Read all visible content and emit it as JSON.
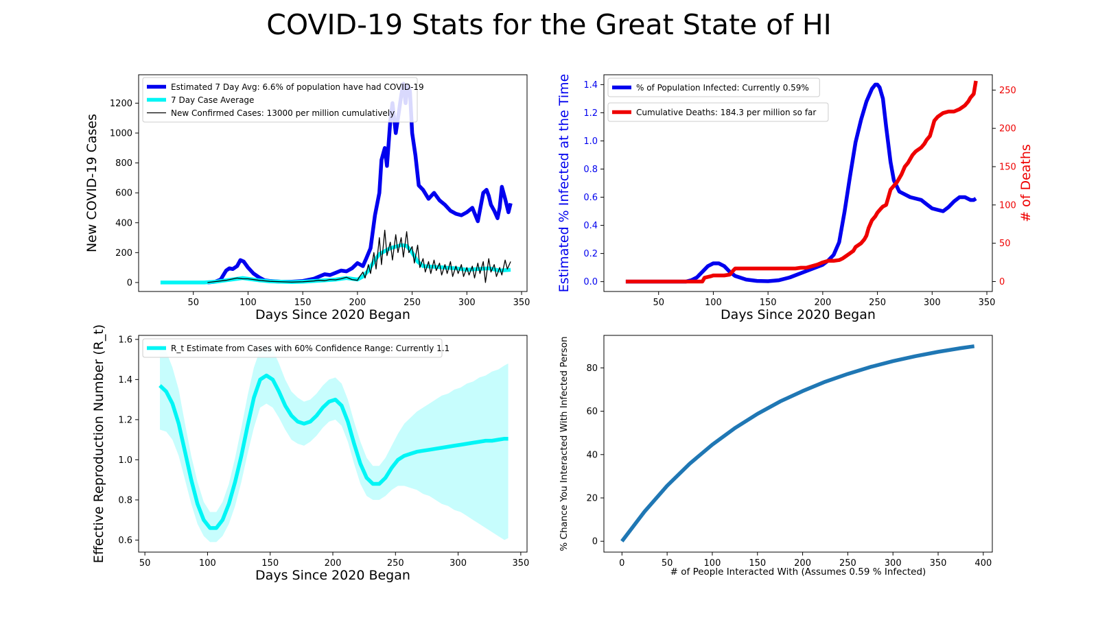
{
  "page": {
    "title": "COVID-19 Stats for the Great State of HI"
  },
  "chart_data": [
    {
      "id": "cases",
      "type": "line",
      "xlabel": "Days Since 2020 Began",
      "ylabel": "New COVID-19 Cases",
      "xlim": [
        0,
        355
      ],
      "ylim": [
        -60,
        1390
      ],
      "xticks": [
        50,
        100,
        150,
        200,
        250,
        300,
        350
      ],
      "yticks": [
        0,
        200,
        400,
        600,
        800,
        1000,
        1200
      ],
      "legend_position": "top-left",
      "series": [
        {
          "name": "Estimated 7 Day Avg: 6.6% of population have had COVID-19",
          "color": "#0000ee",
          "x": [
            63,
            70,
            75,
            80,
            83,
            86,
            90,
            93,
            96,
            100,
            105,
            110,
            115,
            120,
            125,
            130,
            140,
            150,
            160,
            165,
            170,
            175,
            180,
            185,
            190,
            195,
            200,
            205,
            208,
            212,
            216,
            220,
            222,
            225,
            227,
            230,
            232,
            235,
            238,
            240,
            242,
            244,
            246,
            248,
            250,
            253,
            256,
            260,
            265,
            270,
            275,
            280,
            285,
            290,
            295,
            300,
            305,
            310,
            315,
            318,
            320,
            322,
            325,
            328,
            330,
            332,
            335,
            338,
            340
          ],
          "y": [
            0,
            5,
            20,
            80,
            95,
            90,
            110,
            150,
            140,
            100,
            60,
            35,
            15,
            10,
            8,
            5,
            5,
            10,
            25,
            40,
            55,
            50,
            65,
            80,
            75,
            95,
            130,
            110,
            160,
            230,
            450,
            600,
            820,
            900,
            780,
            1080,
            1200,
            1000,
            1150,
            1250,
            1330,
            1200,
            1320,
            1280,
            1000,
            850,
            650,
            620,
            560,
            600,
            550,
            520,
            480,
            460,
            450,
            470,
            500,
            410,
            600,
            620,
            580,
            520,
            480,
            430,
            500,
            640,
            560,
            470,
            530
          ]
        },
        {
          "name": "7 Day Case Average",
          "color": "#00f5f5",
          "x": [
            20,
            40,
            60,
            70,
            80,
            90,
            95,
            100,
            110,
            120,
            130,
            140,
            150,
            160,
            170,
            180,
            190,
            195,
            200,
            205,
            210,
            215,
            220,
            225,
            230,
            235,
            240,
            245,
            250,
            255,
            260,
            270,
            280,
            290,
            300,
            310,
            320,
            330,
            340
          ],
          "y": [
            0,
            0,
            0,
            5,
            15,
            25,
            30,
            25,
            15,
            8,
            5,
            3,
            5,
            10,
            15,
            20,
            30,
            25,
            20,
            40,
            80,
            140,
            190,
            210,
            230,
            240,
            250,
            245,
            200,
            140,
            110,
            105,
            100,
            95,
            85,
            90,
            95,
            80,
            85
          ]
        },
        {
          "name": "New Confirmed Cases: 13000 per million cumulatively",
          "color": "#000000",
          "x": [
            63,
            80,
            90,
            95,
            100,
            110,
            120,
            130,
            140,
            150,
            160,
            165,
            170,
            175,
            180,
            185,
            190,
            195,
            200,
            202,
            205,
            207,
            210,
            212,
            215,
            217,
            220,
            222,
            225,
            227,
            230,
            232,
            235,
            237,
            240,
            242,
            245,
            247,
            250,
            252,
            255,
            257,
            260,
            262,
            265,
            267,
            270,
            272,
            275,
            277,
            280,
            282,
            285,
            287,
            290,
            292,
            295,
            297,
            300,
            302,
            305,
            307,
            310,
            312,
            315,
            317,
            320,
            322,
            325,
            327,
            330,
            332,
            335,
            337,
            340
          ],
          "y": [
            0,
            15,
            30,
            25,
            25,
            15,
            8,
            5,
            3,
            5,
            10,
            15,
            12,
            20,
            18,
            25,
            35,
            20,
            15,
            40,
            70,
            30,
            120,
            60,
            200,
            90,
            300,
            120,
            350,
            180,
            270,
            150,
            320,
            200,
            300,
            170,
            340,
            200,
            240,
            130,
            250,
            100,
            160,
            70,
            140,
            60,
            150,
            80,
            130,
            50,
            120,
            60,
            140,
            40,
            110,
            60,
            120,
            40,
            100,
            50,
            110,
            30,
            130,
            60,
            140,
            0,
            160,
            70,
            120,
            40,
            100,
            50,
            150,
            90,
            140
          ]
        }
      ]
    },
    {
      "id": "infected",
      "type": "line",
      "xlabel": "Days Since 2020 Began",
      "ylabel": "Estimated % Infected at the Time",
      "ylabel_right": "# of Deaths",
      "xlim": [
        0,
        355
      ],
      "ylim": [
        -0.07,
        1.47
      ],
      "ylim_right": [
        -13,
        270
      ],
      "xticks": [
        50,
        100,
        150,
        200,
        250,
        300,
        350
      ],
      "yticks": [
        0.0,
        0.2,
        0.4,
        0.6,
        0.8,
        1.0,
        1.2,
        1.4
      ],
      "yticks_right": [
        0,
        50,
        100,
        150,
        200,
        250
      ],
      "legend_position": "top-left",
      "series": [
        {
          "name": "% of Population Infected: Currently 0.59%",
          "color": "#0000ee",
          "axis": "left",
          "x": [
            20,
            40,
            60,
            75,
            80,
            85,
            90,
            95,
            100,
            105,
            110,
            115,
            120,
            130,
            140,
            150,
            160,
            170,
            180,
            190,
            200,
            205,
            210,
            215,
            220,
            225,
            230,
            235,
            240,
            245,
            248,
            250,
            252,
            255,
            258,
            262,
            265,
            270,
            275,
            280,
            290,
            295,
            300,
            305,
            310,
            315,
            320,
            325,
            330,
            335,
            338,
            340
          ],
          "y": [
            0,
            0,
            0,
            0,
            0.01,
            0.03,
            0.07,
            0.11,
            0.13,
            0.13,
            0.11,
            0.07,
            0.04,
            0.015,
            0.005,
            0.003,
            0.01,
            0.03,
            0.06,
            0.09,
            0.12,
            0.15,
            0.19,
            0.28,
            0.5,
            0.75,
            0.99,
            1.15,
            1.28,
            1.37,
            1.4,
            1.4,
            1.38,
            1.3,
            1.1,
            0.85,
            0.72,
            0.64,
            0.62,
            0.6,
            0.58,
            0.55,
            0.52,
            0.51,
            0.5,
            0.53,
            0.57,
            0.6,
            0.6,
            0.58,
            0.58,
            0.59
          ]
        },
        {
          "name": "Cumulative Deaths: 184.3 per million so far",
          "color": "#ee0000",
          "axis": "right",
          "x": [
            20,
            40,
            60,
            75,
            80,
            90,
            92,
            98,
            100,
            105,
            110,
            115,
            118,
            120,
            150,
            175,
            180,
            185,
            190,
            195,
            200,
            205,
            210,
            215,
            218,
            220,
            225,
            228,
            230,
            235,
            238,
            240,
            242,
            245,
            248,
            250,
            253,
            255,
            258,
            260,
            262,
            265,
            268,
            270,
            272,
            275,
            278,
            280,
            282,
            285,
            290,
            293,
            295,
            298,
            300,
            302,
            305,
            310,
            315,
            320,
            325,
            330,
            333,
            335,
            338,
            340
          ],
          "y": [
            0,
            0,
            0,
            0,
            0,
            0,
            5,
            7,
            8,
            8,
            8,
            9,
            14,
            17,
            17,
            17,
            18,
            18,
            20,
            22,
            25,
            27,
            27,
            28,
            30,
            32,
            37,
            40,
            45,
            50,
            55,
            60,
            70,
            80,
            85,
            90,
            95,
            98,
            100,
            110,
            120,
            125,
            130,
            135,
            140,
            150,
            155,
            160,
            165,
            170,
            175,
            180,
            185,
            190,
            200,
            210,
            215,
            220,
            222,
            222,
            225,
            230,
            235,
            240,
            245,
            262
          ]
        }
      ]
    },
    {
      "id": "rt",
      "type": "line",
      "xlabel": "Days Since 2020 Began",
      "ylabel": "Effective Reproduction Number (R_t)",
      "xlim": [
        45,
        355
      ],
      "ylim": [
        0.54,
        1.62
      ],
      "xticks": [
        50,
        100,
        150,
        200,
        250,
        300,
        350
      ],
      "yticks": [
        0.6,
        0.8,
        1.0,
        1.2,
        1.4,
        1.6
      ],
      "legend_position": "top-left",
      "series": [
        {
          "name": "R_t Estimate from Cases with 60% Confidence Range: Currently 1.1",
          "color": "#00f5f5",
          "x": [
            62,
            67,
            72,
            77,
            82,
            87,
            92,
            97,
            102,
            107,
            112,
            117,
            122,
            127,
            132,
            137,
            142,
            147,
            152,
            157,
            162,
            167,
            172,
            177,
            182,
            187,
            192,
            197,
            202,
            207,
            212,
            217,
            222,
            227,
            232,
            237,
            242,
            247,
            252,
            257,
            262,
            267,
            272,
            277,
            282,
            287,
            292,
            297,
            302,
            307,
            312,
            317,
            322,
            327,
            332,
            337,
            340
          ],
          "y": [
            1.37,
            1.34,
            1.28,
            1.18,
            1.04,
            0.9,
            0.78,
            0.7,
            0.66,
            0.66,
            0.7,
            0.78,
            0.89,
            1.02,
            1.17,
            1.31,
            1.4,
            1.42,
            1.4,
            1.34,
            1.27,
            1.22,
            1.19,
            1.18,
            1.19,
            1.22,
            1.26,
            1.29,
            1.3,
            1.27,
            1.19,
            1.08,
            0.98,
            0.91,
            0.88,
            0.88,
            0.91,
            0.96,
            1.0,
            1.02,
            1.03,
            1.04,
            1.045,
            1.05,
            1.055,
            1.06,
            1.065,
            1.07,
            1.075,
            1.08,
            1.085,
            1.09,
            1.095,
            1.095,
            1.1,
            1.105,
            1.105
          ],
          "lower": [
            1.15,
            1.14,
            1.1,
            1.02,
            0.9,
            0.78,
            0.68,
            0.62,
            0.59,
            0.59,
            0.62,
            0.68,
            0.77,
            0.89,
            1.03,
            1.16,
            1.26,
            1.28,
            1.26,
            1.21,
            1.15,
            1.1,
            1.08,
            1.07,
            1.09,
            1.12,
            1.16,
            1.19,
            1.2,
            1.17,
            1.09,
            0.98,
            0.88,
            0.82,
            0.8,
            0.8,
            0.82,
            0.85,
            0.87,
            0.87,
            0.86,
            0.85,
            0.83,
            0.82,
            0.8,
            0.78,
            0.77,
            0.75,
            0.74,
            0.72,
            0.7,
            0.68,
            0.66,
            0.64,
            0.62,
            0.6,
            0.61
          ],
          "upper": [
            1.58,
            1.54,
            1.46,
            1.35,
            1.18,
            1.02,
            0.89,
            0.79,
            0.74,
            0.74,
            0.79,
            0.88,
            1.01,
            1.16,
            1.32,
            1.46,
            1.55,
            1.57,
            1.55,
            1.48,
            1.4,
            1.34,
            1.31,
            1.29,
            1.3,
            1.33,
            1.37,
            1.4,
            1.41,
            1.38,
            1.3,
            1.19,
            1.09,
            1.01,
            0.97,
            0.97,
            1.01,
            1.07,
            1.13,
            1.18,
            1.21,
            1.24,
            1.26,
            1.28,
            1.3,
            1.32,
            1.33,
            1.35,
            1.36,
            1.38,
            1.39,
            1.41,
            1.42,
            1.44,
            1.45,
            1.47,
            1.48
          ]
        }
      ]
    },
    {
      "id": "interaction",
      "type": "line",
      "xlabel": "# of People Interacted With (Assumes 0.59 % Infected)",
      "ylabel": "% Chance You Interacted With Infected Person",
      "xlim": [
        -20,
        410
      ],
      "ylim": [
        -5,
        95
      ],
      "xticks": [
        0,
        50,
        100,
        150,
        200,
        250,
        300,
        350,
        400
      ],
      "yticks": [
        0,
        20,
        40,
        60,
        80
      ],
      "series": [
        {
          "color": "#1f77b4",
          "x": [
            0,
            25,
            50,
            75,
            100,
            125,
            150,
            175,
            200,
            225,
            250,
            275,
            300,
            325,
            350,
            375,
            390
          ],
          "y": [
            0,
            13.7,
            25.6,
            35.8,
            44.6,
            52.2,
            58.8,
            64.5,
            69.3,
            73.6,
            77.2,
            80.4,
            83.1,
            85.4,
            87.4,
            89.1,
            90.0
          ]
        }
      ]
    }
  ]
}
